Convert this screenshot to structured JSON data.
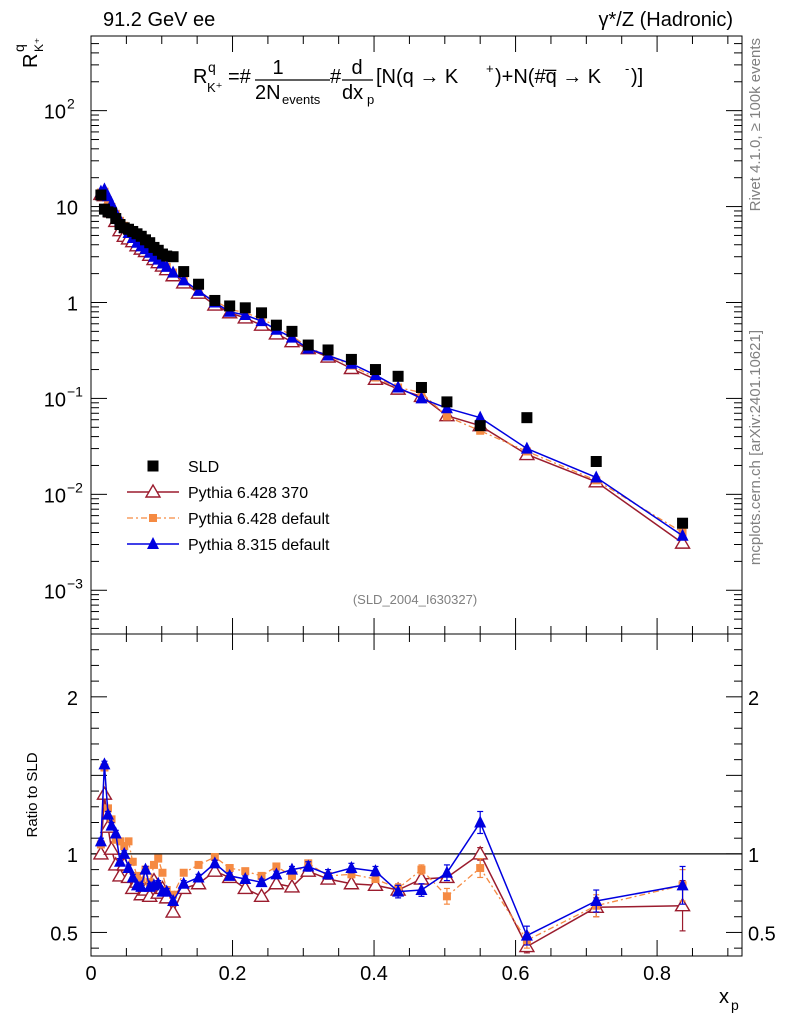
{
  "header": {
    "left": "91.2 GeV ee",
    "right": "γ*/Z (Hadronic)"
  },
  "side_labels": {
    "rivet": "Rivet 4.1.0, ≥ 100k events",
    "mcplots": "mcplots.cern.ch [arXiv:2401.10621]"
  },
  "formula": {
    "lhs": "R",
    "lhs_sup": "q",
    "lhs_sub": "K⁺",
    "eq": "=#",
    "frac1_num": "1",
    "frac1_den": "2N",
    "frac1_den_sub": "events",
    "hash": "#",
    "frac2_num": "d",
    "frac2_den": "dx",
    "frac2_den_sub": "p",
    "bracket_a": "[N(q → K",
    "sup_plus": "+",
    "bracket_b": ")+N(#q̅ → K",
    "sup_minus": "-",
    "bracket_c": ")]"
  },
  "watermark": "(SLD_2004_I630327)",
  "colors": {
    "sld": "#000000",
    "p6_370": "#9b1c2e",
    "p6_default": "#f58a42",
    "p8_default": "#0000e0",
    "ref_line": "#000000"
  },
  "chart_data": [
    {
      "type": "scatter",
      "name": "main",
      "yscale": "log",
      "ylim": [
        0.00035,
        600
      ],
      "xlim": [
        0,
        0.92
      ],
      "ylabel": "R",
      "ylabel_sup": "q",
      "ylabel_sub": "K⁺",
      "ytick_labels": [
        {
          "v": 100,
          "base": "10",
          "exp": "2"
        },
        {
          "v": 10,
          "base": "10",
          "exp": ""
        },
        {
          "v": 1,
          "base": "1",
          "exp": ""
        },
        {
          "v": 0.1,
          "base": "10",
          "exp": "−1"
        },
        {
          "v": 0.01,
          "base": "10",
          "exp": "−2"
        },
        {
          "v": 0.001,
          "base": "10",
          "exp": "−3"
        }
      ],
      "legend": [
        {
          "key": "sld",
          "label": "SLD"
        },
        {
          "key": "p6_370",
          "label": "Pythia 6.428 370"
        },
        {
          "key": "p6_default",
          "label": "Pythia 6.428 default"
        },
        {
          "key": "p8_default",
          "label": "Pythia 8.315 default"
        }
      ],
      "x": [
        0.014,
        0.019,
        0.024,
        0.029,
        0.035,
        0.041,
        0.047,
        0.053,
        0.059,
        0.065,
        0.071,
        0.077,
        0.083,
        0.089,
        0.095,
        0.101,
        0.107,
        0.116,
        0.131,
        0.152,
        0.175,
        0.196,
        0.218,
        0.241,
        0.262,
        0.284,
        0.307,
        0.335,
        0.368,
        0.402,
        0.434,
        0.467,
        0.503,
        0.55,
        0.616,
        0.714,
        0.836
      ],
      "series": [
        {
          "key": "sld",
          "name": "SLD",
          "values": [
            13.2,
            9.4,
            8.8,
            8.6,
            7.5,
            6.5,
            6.0,
            5.8,
            5.5,
            5.2,
            4.9,
            4.5,
            4.2,
            3.75,
            3.5,
            3.2,
            3.05,
            3.0,
            2.1,
            1.55,
            1.05,
            0.92,
            0.88,
            0.78,
            0.58,
            0.5,
            0.36,
            0.32,
            0.255,
            0.2,
            0.17,
            0.13,
            0.092,
            0.052,
            0.063,
            0.022,
            0.005
          ]
        },
        {
          "key": "p6_370",
          "name": "Pythia 6.428 370",
          "values": [
            13.4,
            13.0,
            10.5,
            8.8,
            7.0,
            5.6,
            4.9,
            4.6,
            4.3,
            3.9,
            3.6,
            3.4,
            3.1,
            2.8,
            2.6,
            2.4,
            2.2,
            1.9,
            1.6,
            1.25,
            0.94,
            0.78,
            0.69,
            0.58,
            0.47,
            0.39,
            0.33,
            0.27,
            0.205,
            0.158,
            0.125,
            0.105,
            0.066,
            0.052,
            0.026,
            0.0135,
            0.0031
          ]
        },
        {
          "key": "p6_default",
          "name": "Pythia 6.428 default",
          "values": [
            14.0,
            14.3,
            11.6,
            9.9,
            8.4,
            7.1,
            6.3,
            5.6,
            4.9,
            4.4,
            4.0,
            3.6,
            3.3,
            3.0,
            2.85,
            2.55,
            2.35,
            2.05,
            1.7,
            1.3,
            1.05,
            0.85,
            0.78,
            0.68,
            0.56,
            0.45,
            0.34,
            0.28,
            0.22,
            0.165,
            0.13,
            0.115,
            0.065,
            0.046,
            0.028,
            0.014,
            0.004
          ]
        },
        {
          "key": "p8_default",
          "name": "Pythia 8.315 default",
          "values": [
            14.3,
            15.1,
            12.8,
            10.7,
            8.6,
            7.2,
            6.0,
            5.3,
            4.7,
            4.2,
            3.85,
            3.6,
            3.3,
            3.0,
            2.8,
            2.55,
            2.35,
            2.05,
            1.7,
            1.32,
            1.0,
            0.8,
            0.74,
            0.64,
            0.52,
            0.43,
            0.33,
            0.28,
            0.23,
            0.175,
            0.13,
            0.1,
            0.079,
            0.063,
            0.03,
            0.015,
            0.0037
          ]
        }
      ]
    },
    {
      "type": "line",
      "name": "ratio",
      "ylabel": "Ratio to SLD",
      "ylim": [
        0.35,
        2.4
      ],
      "xlim": [
        0,
        0.92
      ],
      "xlabel": "x",
      "xlabel_sub": "p",
      "xticks": [
        0,
        0.2,
        0.4,
        0.6,
        0.8
      ],
      "xtick_labels": [
        "0",
        "0.2",
        "0.4",
        "0.6",
        "0.8"
      ],
      "yticks": [
        0.5,
        1,
        2
      ],
      "ytick_labels": [
        "0.5",
        "1",
        "2"
      ],
      "reference": 1,
      "x": [
        0.014,
        0.019,
        0.024,
        0.029,
        0.035,
        0.041,
        0.047,
        0.053,
        0.059,
        0.065,
        0.071,
        0.077,
        0.083,
        0.089,
        0.095,
        0.101,
        0.107,
        0.116,
        0.131,
        0.152,
        0.175,
        0.196,
        0.218,
        0.241,
        0.262,
        0.284,
        0.307,
        0.335,
        0.368,
        0.402,
        0.434,
        0.467,
        0.503,
        0.55,
        0.616,
        0.714,
        0.836
      ],
      "series": [
        {
          "key": "p6_370",
          "name": "Pythia 6.428 370",
          "values": [
            1.0,
            1.38,
            1.17,
            1.03,
            0.93,
            0.86,
            0.93,
            0.85,
            0.78,
            0.82,
            0.74,
            0.77,
            0.73,
            0.83,
            0.75,
            0.78,
            0.72,
            0.63,
            0.78,
            0.81,
            0.89,
            0.85,
            0.78,
            0.73,
            0.81,
            0.79,
            0.89,
            0.84,
            0.81,
            0.8,
            0.77,
            0.84,
            0.85,
            1.0,
            0.41,
            0.66,
            0.67
          ],
          "errors": [
            0.02,
            0.02,
            0.02,
            0.02,
            0.02,
            0.02,
            0.02,
            0.02,
            0.02,
            0.02,
            0.02,
            0.02,
            0.02,
            0.02,
            0.02,
            0.02,
            0.02,
            0.02,
            0.02,
            0.02,
            0.02,
            0.02,
            0.02,
            0.02,
            0.02,
            0.02,
            0.02,
            0.02,
            0.02,
            0.02,
            0.02,
            0.02,
            0.03,
            0.04,
            0.04,
            0.06,
            0.16
          ]
        },
        {
          "key": "p6_default",
          "name": "Pythia 6.428 default",
          "values": [
            1.06,
            1.55,
            1.29,
            1.22,
            1.09,
            1.08,
            1.05,
            1.08,
            0.95,
            0.86,
            0.83,
            0.9,
            0.82,
            0.93,
            0.97,
            0.88,
            0.77,
            0.74,
            0.88,
            0.93,
            0.98,
            0.91,
            0.89,
            0.86,
            0.92,
            0.86,
            0.94,
            0.86,
            0.87,
            0.84,
            0.78,
            0.9,
            0.73,
            0.91,
            0.45,
            0.67,
            0.8
          ],
          "errors": [
            0.02,
            0.02,
            0.02,
            0.02,
            0.02,
            0.02,
            0.02,
            0.02,
            0.02,
            0.02,
            0.02,
            0.02,
            0.02,
            0.02,
            0.02,
            0.02,
            0.02,
            0.02,
            0.02,
            0.02,
            0.02,
            0.02,
            0.02,
            0.02,
            0.02,
            0.02,
            0.02,
            0.02,
            0.02,
            0.02,
            0.03,
            0.03,
            0.05,
            0.06,
            0.05,
            0.07,
            0.1
          ]
        },
        {
          "key": "p8_default",
          "name": "Pythia 8.315 default",
          "values": [
            1.08,
            1.57,
            1.25,
            1.18,
            1.13,
            0.95,
            1.0,
            0.91,
            0.85,
            0.8,
            0.79,
            0.9,
            0.79,
            0.8,
            0.81,
            0.76,
            0.76,
            0.7,
            0.81,
            0.85,
            0.94,
            0.86,
            0.84,
            0.82,
            0.87,
            0.9,
            0.92,
            0.87,
            0.91,
            0.89,
            0.76,
            0.77,
            0.88,
            1.2,
            0.48,
            0.7,
            0.8
          ],
          "errors": [
            0.02,
            0.02,
            0.02,
            0.02,
            0.02,
            0.02,
            0.02,
            0.02,
            0.02,
            0.02,
            0.02,
            0.02,
            0.02,
            0.02,
            0.02,
            0.02,
            0.02,
            0.02,
            0.02,
            0.02,
            0.02,
            0.02,
            0.02,
            0.02,
            0.02,
            0.02,
            0.03,
            0.03,
            0.03,
            0.03,
            0.04,
            0.04,
            0.05,
            0.07,
            0.06,
            0.07,
            0.12
          ]
        }
      ]
    }
  ]
}
